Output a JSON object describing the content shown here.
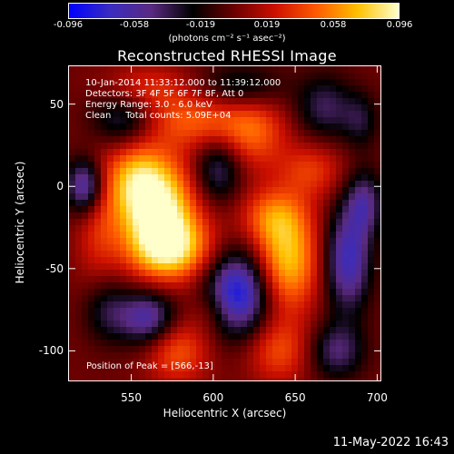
{
  "colorbar": {
    "ticks": [
      "-0.096",
      "-0.058",
      "-0.019",
      "0.019",
      "0.058",
      "0.096"
    ],
    "unit": "(photons cm⁻² s⁻¹ asec⁻²)",
    "colors": [
      "#0000ff",
      "#3a2cc0",
      "#5a2a80",
      "#000000",
      "#6a0000",
      "#cc1000",
      "#ff5a00",
      "#ffc000",
      "#ffffcc"
    ]
  },
  "title": "Reconstructed RHESSI Image",
  "info_lines": [
    "10-Jan-2014 11:33:12.000 to 11:39:12.000",
    "Detectors: 3F 4F 5F 6F 7F 8F, Att 0",
    "Energy Range: 3.0 - 6.0 keV",
    "Clean     Total counts: 5.09E+04"
  ],
  "peak_text": "Position of Peak = [566,-13]",
  "datestamp": "11-May-2022 16:43",
  "chart_data": {
    "type": "heatmap",
    "title": "Reconstructed RHESSI Image",
    "xlabel": "Heliocentric X (arcsec)",
    "ylabel": "Heliocentric Y (arcsec)",
    "xlim": [
      512,
      702
    ],
    "ylim": [
      -118,
      73
    ],
    "x_ticks": [
      550,
      600,
      650,
      700
    ],
    "y_ticks": [
      50,
      0,
      -50,
      -100
    ],
    "value_range": [
      -0.096,
      0.096
    ],
    "colormap": "blue-purple-black-red-yellow-white",
    "blobs": [
      {
        "x": 566,
        "y": -13,
        "amp": 0.096,
        "sx": 16,
        "sy": 22
      },
      {
        "x": 575,
        "y": -38,
        "amp": 0.07,
        "sx": 18,
        "sy": 14
      },
      {
        "x": 552,
        "y": 5,
        "amp": 0.045,
        "sx": 12,
        "sy": 16
      },
      {
        "x": 645,
        "y": -45,
        "amp": 0.075,
        "sx": 14,
        "sy": 22
      },
      {
        "x": 636,
        "y": -18,
        "amp": 0.04,
        "sx": 14,
        "sy": 12
      },
      {
        "x": 590,
        "y": 40,
        "amp": 0.045,
        "sx": 24,
        "sy": 12
      },
      {
        "x": 560,
        "y": 60,
        "amp": 0.03,
        "sx": 18,
        "sy": 10
      },
      {
        "x": 625,
        "y": 32,
        "amp": 0.04,
        "sx": 14,
        "sy": 16
      },
      {
        "x": 660,
        "y": 10,
        "amp": 0.035,
        "sx": 14,
        "sy": 12
      },
      {
        "x": 578,
        "y": -100,
        "amp": 0.045,
        "sx": 14,
        "sy": 14
      },
      {
        "x": 640,
        "y": -100,
        "amp": 0.04,
        "sx": 14,
        "sy": 14
      },
      {
        "x": 600,
        "y": -75,
        "amp": 0.02,
        "sx": 10,
        "sy": 10
      },
      {
        "x": 530,
        "y": -20,
        "amp": 0.03,
        "sx": 10,
        "sy": 30
      },
      {
        "x": 522,
        "y": 0,
        "amp": -0.075,
        "sx": 8,
        "sy": 12
      },
      {
        "x": 545,
        "y": 40,
        "amp": -0.045,
        "sx": 14,
        "sy": 12
      },
      {
        "x": 535,
        "y": -75,
        "amp": -0.035,
        "sx": 10,
        "sy": 14
      },
      {
        "x": 560,
        "y": -80,
        "amp": -0.065,
        "sx": 12,
        "sy": 12
      },
      {
        "x": 615,
        "y": -65,
        "amp": -0.09,
        "sx": 14,
        "sy": 18
      },
      {
        "x": 603,
        "y": 10,
        "amp": -0.045,
        "sx": 10,
        "sy": 14
      },
      {
        "x": 617,
        "y": 60,
        "amp": -0.035,
        "sx": 18,
        "sy": 10
      },
      {
        "x": 668,
        "y": 48,
        "amp": -0.04,
        "sx": 12,
        "sy": 14
      },
      {
        "x": 682,
        "y": -45,
        "amp": -0.07,
        "sx": 10,
        "sy": 22
      },
      {
        "x": 692,
        "y": -10,
        "amp": -0.05,
        "sx": 8,
        "sy": 14
      },
      {
        "x": 675,
        "y": -100,
        "amp": -0.045,
        "sx": 12,
        "sy": 12
      },
      {
        "x": 690,
        "y": 40,
        "amp": -0.03,
        "sx": 8,
        "sy": 12
      }
    ]
  }
}
